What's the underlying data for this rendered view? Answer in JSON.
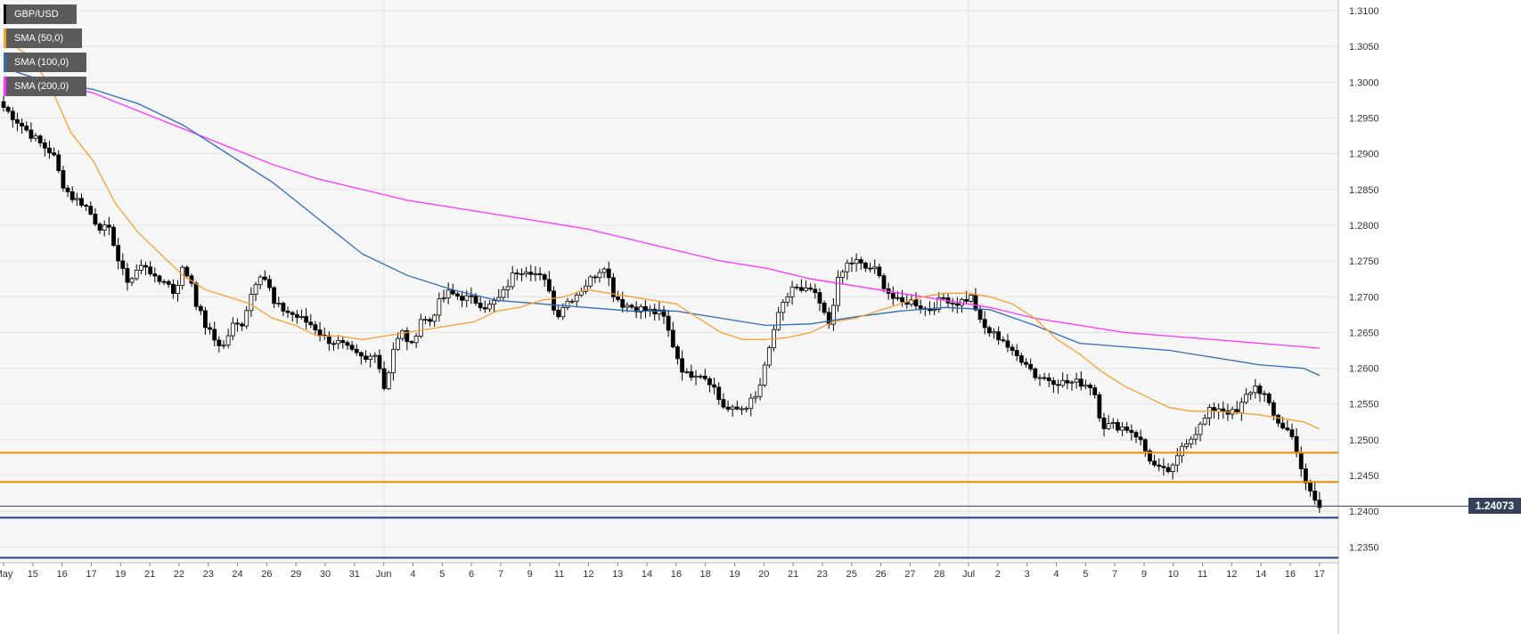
{
  "colors": {
    "background": "#f6f6f6",
    "grid": "#e2e2e2",
    "bull_candle": "#ffffff",
    "bear_candle": "#000000",
    "sma50": "#f5a030",
    "sma100": "#2f6db5",
    "sma200": "#ff33ff",
    "resistance": "#f28c00",
    "support": "#1f3f8f",
    "price_tag": "#33415c"
  },
  "legend": [
    {
      "label": "GBP/USD",
      "color": "#000000"
    },
    {
      "label": "SMA (50,0)",
      "color": "#f5a030"
    },
    {
      "label": "SMA (100,0)",
      "color": "#2f6db5"
    },
    {
      "label": "SMA (200,0)",
      "color": "#ff33ff"
    }
  ],
  "current_price": "1.24073",
  "chart_data": {
    "type": "candlestick",
    "symbol": "GBP/USD",
    "ylim": [
      1.2328,
      1.3115
    ],
    "y_ticks": [
      "1.2350",
      "1.2400",
      "1.2450",
      "1.2500",
      "1.2550",
      "1.2600",
      "1.2650",
      "1.2700",
      "1.2750",
      "1.2800",
      "1.2850",
      "1.2900",
      "1.2950",
      "1.3000",
      "1.3050",
      "1.3100"
    ],
    "x_labels": [
      "May",
      "15",
      "16",
      "17",
      "19",
      "21",
      "22",
      "23",
      "24",
      "26",
      "29",
      "30",
      "31",
      "Jun",
      "4",
      "5",
      "6",
      "7",
      "9",
      "11",
      "12",
      "13",
      "14",
      "16",
      "18",
      "19",
      "20",
      "21",
      "23",
      "25",
      "26",
      "27",
      "28",
      "Jul",
      "2",
      "3",
      "4",
      "5",
      "7",
      "9",
      "10",
      "11",
      "12",
      "14",
      "16",
      "17"
    ],
    "x_label_index": [
      0,
      28,
      56,
      84,
      112,
      140,
      168,
      196,
      224,
      252,
      280,
      308,
      336,
      364,
      392,
      420,
      448,
      476,
      504,
      532,
      560,
      588,
      616,
      644,
      672,
      700,
      728,
      756,
      784,
      812,
      840,
      868,
      896,
      924,
      952,
      980,
      1008,
      1036,
      1064,
      1092,
      1120,
      1148,
      1176,
      1204,
      1232,
      1260
    ],
    "candle_count": 288,
    "horizontal_levels": {
      "resistance": [
        1.2482,
        1.2441
      ],
      "support": [
        1.2391,
        1.2335
      ],
      "current": 1.24073
    },
    "anchors": [
      [
        0,
        1.2965
      ],
      [
        8,
        1.294
      ],
      [
        16,
        1.2915
      ],
      [
        22,
        1.29
      ],
      [
        26,
        1.286
      ],
      [
        30,
        1.284
      ],
      [
        36,
        1.283
      ],
      [
        42,
        1.28
      ],
      [
        48,
        1.279
      ],
      [
        52,
        1.274
      ],
      [
        56,
        1.272
      ],
      [
        60,
        1.274
      ],
      [
        64,
        1.2745
      ],
      [
        68,
        1.272
      ],
      [
        72,
        1.2725
      ],
      [
        76,
        1.2705
      ],
      [
        80,
        1.274
      ],
      [
        84,
        1.272
      ],
      [
        86,
        1.269
      ],
      [
        90,
        1.266
      ],
      [
        94,
        1.264
      ],
      [
        98,
        1.263
      ],
      [
        102,
        1.266
      ],
      [
        106,
        1.266
      ],
      [
        110,
        1.27
      ],
      [
        114,
        1.2735
      ],
      [
        118,
        1.272
      ],
      [
        120,
        1.269
      ],
      [
        126,
        1.268
      ],
      [
        132,
        1.267
      ],
      [
        138,
        1.266
      ],
      [
        144,
        1.264
      ],
      [
        150,
        1.2635
      ],
      [
        156,
        1.262
      ],
      [
        162,
        1.261
      ],
      [
        166,
        1.2625
      ],
      [
        170,
        1.257
      ],
      [
        174,
        1.263
      ],
      [
        178,
        1.265
      ],
      [
        182,
        1.263
      ],
      [
        186,
        1.267
      ],
      [
        190,
        1.2665
      ],
      [
        194,
        1.269
      ],
      [
        198,
        1.2705
      ],
      [
        204,
        1.27
      ],
      [
        210,
        1.2695
      ],
      [
        216,
        1.2685
      ],
      [
        222,
        1.27
      ],
      [
        228,
        1.2735
      ],
      [
        234,
        1.274
      ],
      [
        240,
        1.2725
      ],
      [
        244,
        1.271
      ],
      [
        246,
        1.267
      ],
      [
        250,
        1.269
      ],
      [
        256,
        1.2705
      ],
      [
        262,
        1.2725
      ],
      [
        268,
        1.2745
      ],
      [
        272,
        1.2705
      ],
      [
        276,
        1.269
      ],
      [
        282,
        1.2685
      ],
      [
        288,
        1.268
      ],
      [
        294,
        1.2675
      ],
      [
        300,
        1.262
      ],
      [
        304,
        1.259
      ],
      [
        310,
        1.2595
      ],
      [
        316,
        1.258
      ],
      [
        320,
        1.255
      ],
      [
        324,
        1.254
      ],
      [
        330,
        1.2545
      ],
      [
        336,
        1.256
      ],
      [
        340,
        1.2605
      ],
      [
        344,
        1.266
      ],
      [
        348,
        1.269
      ],
      [
        352,
        1.2715
      ],
      [
        356,
        1.2705
      ],
      [
        360,
        1.271
      ],
      [
        364,
        1.269
      ],
      [
        368,
        1.266
      ],
      [
        372,
        1.272
      ],
      [
        376,
        1.2745
      ],
      [
        380,
        1.275
      ],
      [
        384,
        1.274
      ],
      [
        388,
        1.274
      ],
      [
        392,
        1.272
      ],
      [
        396,
        1.27
      ],
      [
        400,
        1.269
      ],
      [
        404,
        1.2695
      ],
      [
        408,
        1.269
      ],
      [
        412,
        1.268
      ],
      [
        416,
        1.269
      ],
      [
        420,
        1.27
      ],
      [
        424,
        1.269
      ],
      [
        432,
        1.27
      ],
      [
        436,
        1.266
      ],
      [
        440,
        1.265
      ],
      [
        446,
        1.264
      ],
      [
        450,
        1.262
      ],
      [
        456,
        1.261
      ],
      [
        460,
        1.259
      ],
      [
        466,
        1.2585
      ],
      [
        472,
        1.258
      ],
      [
        480,
        1.258
      ],
      [
        486,
        1.2575
      ],
      [
        490,
        1.252
      ],
      [
        496,
        1.252
      ],
      [
        502,
        1.2515
      ],
      [
        506,
        1.2505
      ],
      [
        510,
        1.248
      ],
      [
        514,
        1.246
      ],
      [
        518,
        1.2455
      ],
      [
        522,
        1.246
      ],
      [
        526,
        1.2495
      ],
      [
        530,
        1.2505
      ],
      [
        534,
        1.252
      ],
      [
        538,
        1.254
      ],
      [
        542,
        1.2545
      ],
      [
        546,
        1.254
      ],
      [
        550,
        1.2535
      ],
      [
        554,
        1.256
      ],
      [
        558,
        1.2575
      ],
      [
        562,
        1.2565
      ],
      [
        566,
        1.2535
      ],
      [
        570,
        1.252
      ],
      [
        574,
        1.251
      ],
      [
        578,
        1.2475
      ],
      [
        580,
        1.244
      ],
      [
        584,
        1.242
      ],
      [
        587,
        1.2405
      ]
    ],
    "sma50": [
      [
        0,
        1.306
      ],
      [
        10,
        1.304
      ],
      [
        20,
        1.3
      ],
      [
        30,
        1.293
      ],
      [
        40,
        1.289
      ],
      [
        50,
        1.283
      ],
      [
        60,
        1.279
      ],
      [
        70,
        1.276
      ],
      [
        80,
        1.273
      ],
      [
        90,
        1.271
      ],
      [
        100,
        1.27
      ],
      [
        110,
        1.269
      ],
      [
        120,
        1.267
      ],
      [
        130,
        1.266
      ],
      [
        140,
        1.2645
      ],
      [
        150,
        1.2645
      ],
      [
        160,
        1.264
      ],
      [
        170,
        1.2645
      ],
      [
        180,
        1.265
      ],
      [
        190,
        1.2655
      ],
      [
        200,
        1.266
      ],
      [
        210,
        1.2665
      ],
      [
        220,
        1.268
      ],
      [
        230,
        1.2685
      ],
      [
        240,
        1.2695
      ],
      [
        250,
        1.27
      ],
      [
        260,
        1.271
      ],
      [
        270,
        1.2705
      ],
      [
        280,
        1.27
      ],
      [
        290,
        1.2695
      ],
      [
        300,
        1.269
      ],
      [
        310,
        1.267
      ],
      [
        320,
        1.265
      ],
      [
        330,
        1.264
      ],
      [
        340,
        1.264
      ],
      [
        350,
        1.2643
      ],
      [
        360,
        1.265
      ],
      [
        370,
        1.2665
      ],
      [
        380,
        1.267
      ],
      [
        390,
        1.268
      ],
      [
        400,
        1.269
      ],
      [
        410,
        1.27
      ],
      [
        420,
        1.2705
      ],
      [
        430,
        1.2705
      ],
      [
        440,
        1.27
      ],
      [
        450,
        1.269
      ],
      [
        460,
        1.267
      ],
      [
        470,
        1.264
      ],
      [
        480,
        1.262
      ],
      [
        490,
        1.2595
      ],
      [
        500,
        1.2575
      ],
      [
        510,
        1.256
      ],
      [
        520,
        1.2545
      ],
      [
        530,
        1.254
      ],
      [
        540,
        1.254
      ],
      [
        550,
        1.2538
      ],
      [
        560,
        1.2535
      ],
      [
        570,
        1.253
      ],
      [
        580,
        1.2525
      ],
      [
        587,
        1.2515
      ]
    ],
    "sma100": [
      [
        0,
        1.302
      ],
      [
        20,
        1.3
      ],
      [
        40,
        1.299
      ],
      [
        60,
        1.297
      ],
      [
        80,
        1.294
      ],
      [
        100,
        1.29
      ],
      [
        120,
        1.286
      ],
      [
        140,
        1.281
      ],
      [
        160,
        1.276
      ],
      [
        180,
        1.273
      ],
      [
        200,
        1.271
      ],
      [
        220,
        1.2695
      ],
      [
        240,
        1.269
      ],
      [
        260,
        1.2685
      ],
      [
        280,
        1.268
      ],
      [
        300,
        1.268
      ],
      [
        320,
        1.267
      ],
      [
        340,
        1.266
      ],
      [
        360,
        1.2662
      ],
      [
        380,
        1.2672
      ],
      [
        400,
        1.268
      ],
      [
        420,
        1.2685
      ],
      [
        440,
        1.2682
      ],
      [
        460,
        1.266
      ],
      [
        480,
        1.2635
      ],
      [
        500,
        1.263
      ],
      [
        520,
        1.2625
      ],
      [
        540,
        1.2615
      ],
      [
        560,
        1.2605
      ],
      [
        580,
        1.26
      ],
      [
        587,
        1.259
      ]
    ],
    "sma200": [
      [
        0,
        1.302
      ],
      [
        20,
        1.3
      ],
      [
        40,
        1.2985
      ],
      [
        60,
        1.296
      ],
      [
        80,
        1.2935
      ],
      [
        100,
        1.291
      ],
      [
        120,
        1.2885
      ],
      [
        140,
        1.2865
      ],
      [
        160,
        1.285
      ],
      [
        180,
        1.2835
      ],
      [
        200,
        1.2825
      ],
      [
        220,
        1.2815
      ],
      [
        240,
        1.2805
      ],
      [
        260,
        1.2795
      ],
      [
        280,
        1.278
      ],
      [
        300,
        1.2765
      ],
      [
        320,
        1.275
      ],
      [
        340,
        1.274
      ],
      [
        360,
        1.2725
      ],
      [
        380,
        1.2715
      ],
      [
        400,
        1.2705
      ],
      [
        420,
        1.2695
      ],
      [
        440,
        1.2685
      ],
      [
        460,
        1.267
      ],
      [
        480,
        1.266
      ],
      [
        500,
        1.265
      ],
      [
        520,
        1.2645
      ],
      [
        540,
        1.264
      ],
      [
        560,
        1.2635
      ],
      [
        580,
        1.263
      ],
      [
        587,
        1.2628
      ]
    ]
  }
}
